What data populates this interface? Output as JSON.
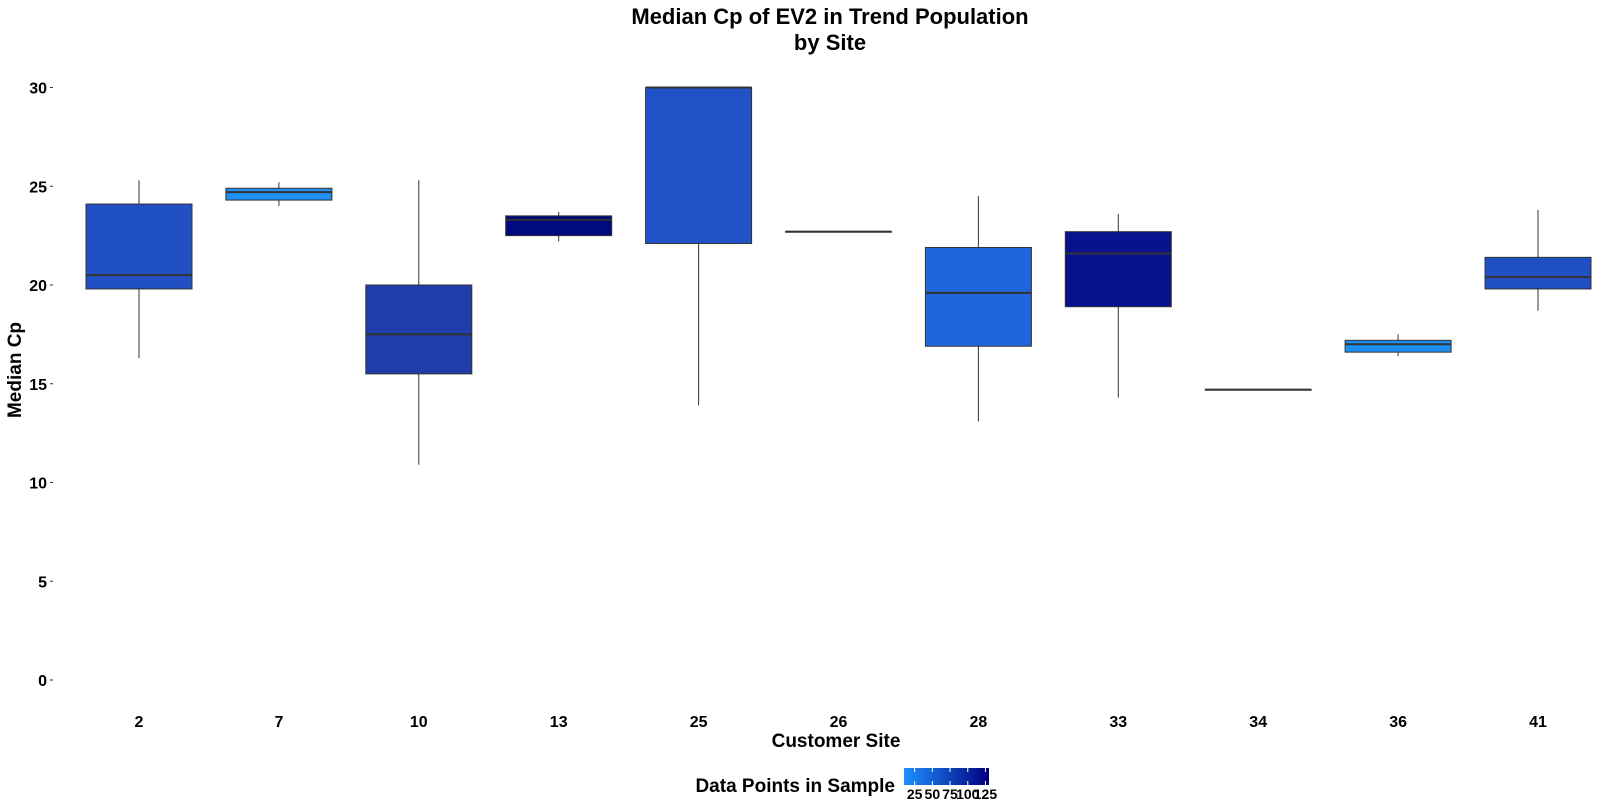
{
  "chart_data": {
    "type": "box",
    "title_line1": "Median Cp of EV2 in Trend Population",
    "title_line2": "by Site",
    "xlabel": "Customer Site",
    "ylabel": "Median Cp",
    "ylim": [
      0,
      30
    ],
    "y_ticks": [
      "0",
      "5",
      "10",
      "15",
      "20",
      "25",
      "30"
    ],
    "grid": false,
    "legend": {
      "title": "Data Points in Sample",
      "placement": "bottom",
      "ticks": [
        "25",
        "50",
        "75",
        "100",
        "125"
      ],
      "color_low": "#1e90ff",
      "color_high": "#00007f",
      "range": [
        10,
        130
      ]
    },
    "categories": [
      "2",
      "7",
      "10",
      "13",
      "25",
      "26",
      "28",
      "33",
      "34",
      "36",
      "41"
    ],
    "boxes": [
      {
        "site": "2",
        "whisker_low": 16.3,
        "q1": 19.8,
        "median": 20.5,
        "q3": 24.1,
        "whisker_high": 25.3,
        "n": 72,
        "fill": "#2150c4"
      },
      {
        "site": "7",
        "whisker_low": 24.0,
        "q1": 24.3,
        "median": 24.7,
        "q3": 24.9,
        "whisker_high": 25.2,
        "n": 14,
        "fill": "#1e90f0"
      },
      {
        "site": "10",
        "whisker_low": 10.9,
        "q1": 15.5,
        "median": 17.5,
        "q3": 20.0,
        "whisker_high": 25.3,
        "n": 85,
        "fill": "#1f3dab"
      },
      {
        "site": "13",
        "whisker_low": 22.2,
        "q1": 22.5,
        "median": 23.3,
        "q3": 23.5,
        "whisker_high": 23.7,
        "n": 128,
        "fill": "#000a80"
      },
      {
        "site": "25",
        "whisker_low": 13.9,
        "q1": 22.1,
        "median": 30.0,
        "q3": 30.0,
        "whisker_high": 30.0,
        "n": 70,
        "fill": "#2253c6"
      },
      {
        "site": "26",
        "whisker_low": 22.7,
        "q1": 22.7,
        "median": 22.7,
        "q3": 22.7,
        "whisker_high": 22.7,
        "n": 40,
        "fill": "#1f6fe0"
      },
      {
        "site": "28",
        "whisker_low": 13.1,
        "q1": 16.9,
        "median": 19.6,
        "q3": 21.9,
        "whisker_high": 24.5,
        "n": 50,
        "fill": "#2066da"
      },
      {
        "site": "33",
        "whisker_low": 14.3,
        "q1": 18.9,
        "median": 21.6,
        "q3": 22.7,
        "whisker_high": 23.6,
        "n": 118,
        "fill": "#08118e"
      },
      {
        "site": "34",
        "whisker_low": 14.7,
        "q1": 14.7,
        "median": 14.7,
        "q3": 14.7,
        "whisker_high": 14.7,
        "n": 40,
        "fill": "#1f6fe0"
      },
      {
        "site": "36",
        "whisker_low": 16.4,
        "q1": 16.6,
        "median": 17.0,
        "q3": 17.2,
        "whisker_high": 17.5,
        "n": 15,
        "fill": "#1e8ff0"
      },
      {
        "site": "41",
        "whisker_low": 18.7,
        "q1": 19.8,
        "median": 20.4,
        "q3": 21.4,
        "whisker_high": 23.8,
        "n": 75,
        "fill": "#2150c4"
      }
    ]
  }
}
